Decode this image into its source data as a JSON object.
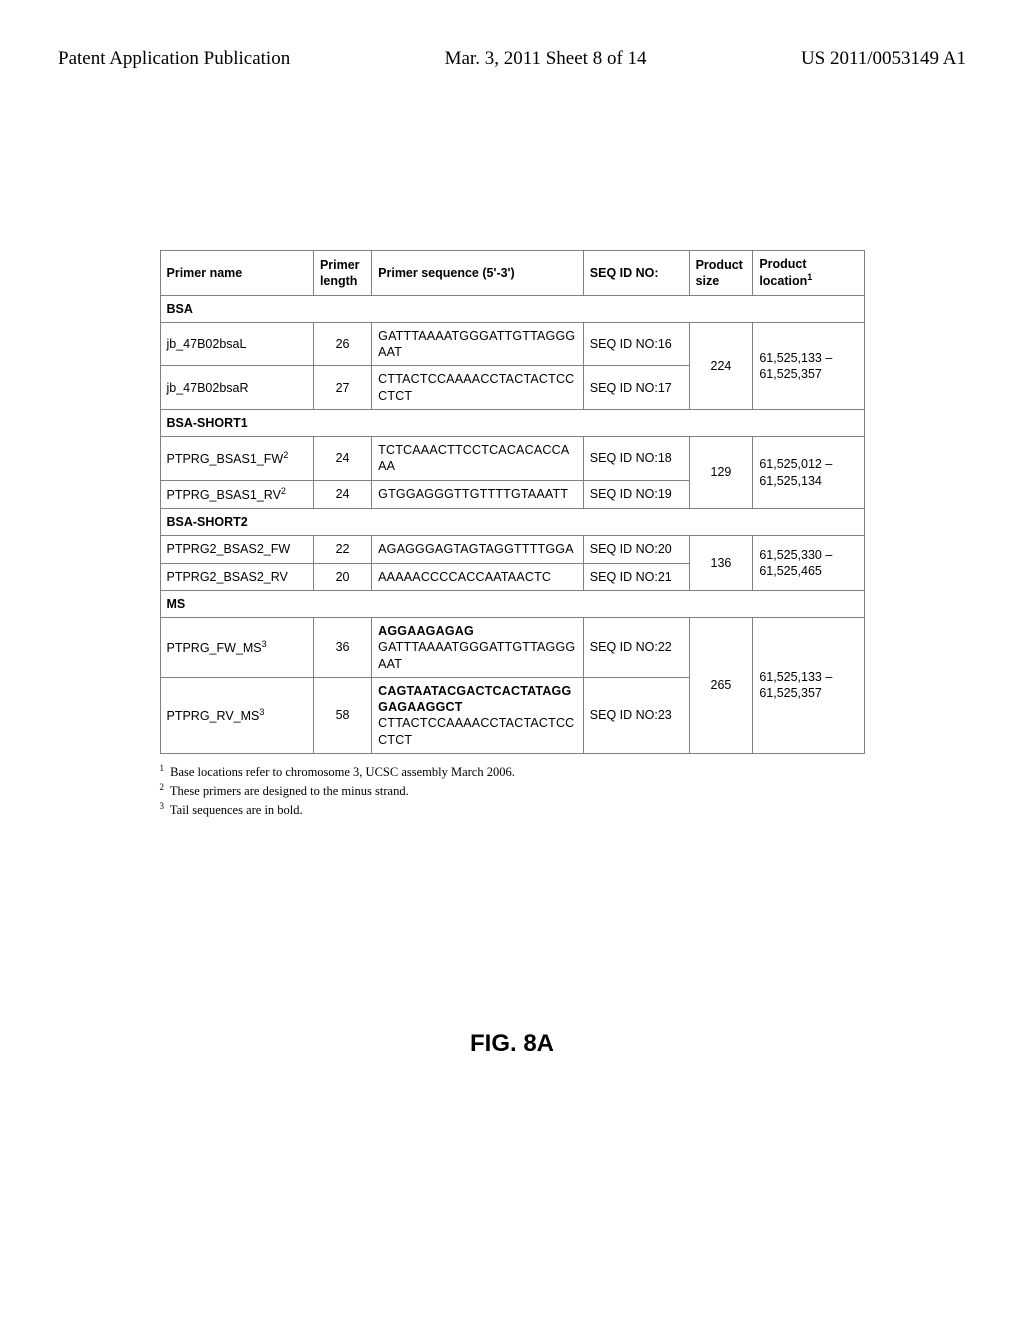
{
  "header": {
    "left": "Patent Application Publication",
    "center": "Mar. 3, 2011  Sheet 8 of 14",
    "right": "US 2011/0053149 A1"
  },
  "table": {
    "columns": [
      {
        "key": "name",
        "label": "Primer name"
      },
      {
        "key": "len",
        "label": "Primer length"
      },
      {
        "key": "seq",
        "label": "Primer sequence (5'-3')"
      },
      {
        "key": "seqid",
        "label": "SEQ ID NO:"
      },
      {
        "key": "psize",
        "label": "Product size"
      },
      {
        "key": "loc",
        "label_html": "Product location<sup>1</sup>",
        "label": "Product location1"
      }
    ],
    "sections": [
      {
        "title": "BSA",
        "rows": [
          {
            "name": "jb_47B02bsaL",
            "len": "26",
            "seq": "GATTTAAAATGGGATTGTTAGGGAAT",
            "seqid": "SEQ ID NO:16",
            "psize": "224",
            "loc": "61,525,133 – 61,525,357",
            "psize_rowspan": 2,
            "loc_rowspan": 2
          },
          {
            "name": "jb_47B02bsaR",
            "len": "27",
            "seq": "CTTACTCCAAAACCTACTACTCCCTCT",
            "seqid": "SEQ ID NO:17"
          }
        ]
      },
      {
        "title": "BSA-SHORT1",
        "rows": [
          {
            "name_html": "PTPRG_BSAS1_FW<sup>2</sup>",
            "name": "PTPRG_BSAS1_FW2",
            "len": "24",
            "seq": "TCTCAAACTTCCTCACACACCAAA",
            "seqid": "SEQ ID NO:18",
            "psize": "129",
            "loc": "61,525,012 – 61,525,134",
            "psize_rowspan": 2,
            "loc_rowspan": 2
          },
          {
            "name_html": "PTPRG_BSAS1_RV<sup>2</sup>",
            "name": "PTPRG_BSAS1_RV2",
            "len": "24",
            "seq": "GTGGAGGGTTGTTTTGTAAATT",
            "seqid": "SEQ ID NO:19"
          }
        ]
      },
      {
        "title": "BSA-SHORT2",
        "rows": [
          {
            "name": "PTPRG2_BSAS2_FW",
            "len": "22",
            "seq": "AGAGGGAGTAGTAGGTTTTGGA",
            "seqid": "SEQ ID NO:20",
            "psize": "136",
            "loc": "61,525,330 – 61,525,465",
            "psize_rowspan": 2,
            "loc_rowspan": 2
          },
          {
            "name": "PTPRG2_BSAS2_RV",
            "len": "20",
            "seq": "AAAAACCCCACCAATAACTC",
            "seqid": "SEQ ID NO:21"
          }
        ]
      },
      {
        "title": "MS",
        "rows": [
          {
            "name_html": "PTPRG_FW_MS<sup>3</sup>",
            "name": "PTPRG_FW_MS3",
            "len": "36",
            "seq_html": "<span class=\"bold-seq-part\">AGGAAGAGAG</span><br>GATTTAAAATGGGATTGTTAGGGAAT",
            "seqid": "SEQ ID NO:22",
            "psize": "265",
            "loc": "61,525,133 – 61,525,357",
            "psize_rowspan": 2,
            "loc_rowspan": 2
          },
          {
            "name_html": "PTPRG_RV_MS<sup>3</sup>",
            "name": "PTPRG_RV_MS3",
            "len": "58",
            "seq_html": "<span class=\"bold-seq-part\">CAGTAATACGACTCACTATAGGGAGAAGGCT</span><br>CTTACTCCAAAACCTACTACTCCCTCT",
            "seqid": "SEQ ID NO:23"
          }
        ]
      }
    ]
  },
  "footnotes": [
    {
      "num": "1",
      "text": "Base locations refer to chromosome 3, UCSC assembly March 2006."
    },
    {
      "num": "2",
      "text": "These primers are designed to the minus strand."
    },
    {
      "num": "3",
      "text": "Tail sequences are in bold."
    }
  ],
  "figure_label": "FIG. 8A",
  "colors": {
    "border": "#808080",
    "background": "#ffffff",
    "text": "#000000"
  }
}
